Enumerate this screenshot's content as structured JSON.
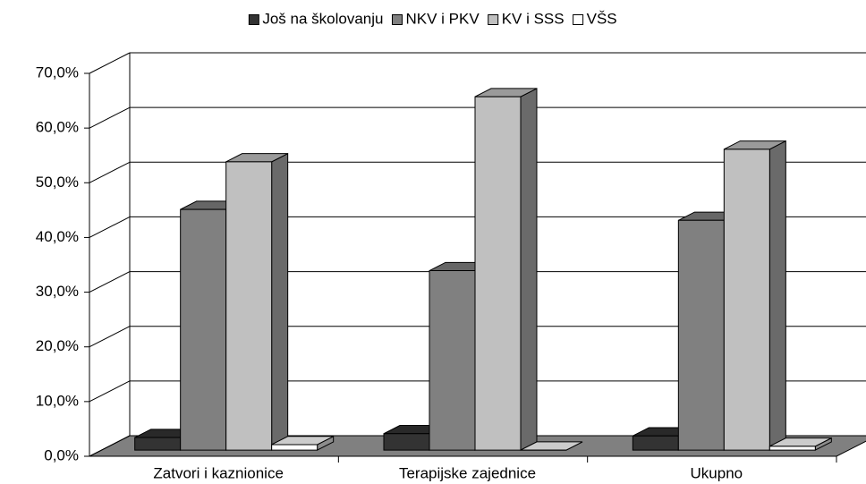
{
  "chart_data": {
    "type": "bar3d",
    "categories": [
      "Zatvori i kaznionice",
      "Terapijske zajednice",
      "Ukupno"
    ],
    "series": [
      {
        "name": "Još na školovanju",
        "color": "#333333",
        "values": [
          2.3,
          3.0,
          2.6
        ]
      },
      {
        "name": "NKV i PKV",
        "color": "#808080",
        "values": [
          44.0,
          32.8,
          42.0
        ]
      },
      {
        "name": "KV i SSS",
        "color": "#c0c0c0",
        "values": [
          52.7,
          64.6,
          55.0
        ]
      },
      {
        "name": "VŠS",
        "color": "#ffffff",
        "values": [
          1.0,
          0.0,
          0.7
        ]
      }
    ],
    "ylim": [
      0,
      70
    ],
    "yticks": [
      {
        "value": 0,
        "label": "0,0%"
      },
      {
        "value": 10,
        "label": "10,0%"
      },
      {
        "value": 20,
        "label": "20,0%"
      },
      {
        "value": 30,
        "label": "30,0%"
      },
      {
        "value": 40,
        "label": "40,0%"
      },
      {
        "value": 50,
        "label": "50,0%"
      },
      {
        "value": 60,
        "label": "60,0%"
      },
      {
        "value": 70,
        "label": "70,0%"
      }
    ],
    "grid": true,
    "legend": "top"
  }
}
